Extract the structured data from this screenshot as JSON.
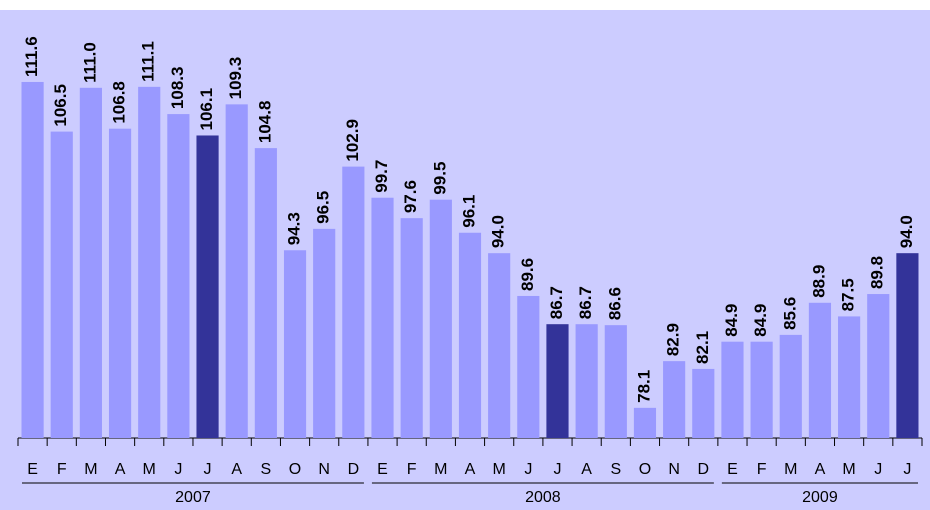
{
  "chart_data": {
    "type": "bar",
    "ylim": [
      75,
      119
    ],
    "color": "#9999ff",
    "groups": [
      {
        "label": "2007",
        "categories": [
          "E",
          "F",
          "M",
          "A",
          "M",
          "J",
          "J",
          "A",
          "S",
          "O",
          "N",
          "D"
        ],
        "values": [
          111.6,
          106.5,
          111.0,
          106.8,
          111.1,
          108.3,
          106.1,
          109.3,
          104.8,
          94.3,
          96.5,
          102.9
        ],
        "value_labels": [
          "111.6",
          "106.5",
          "111.0",
          "106.8",
          "111.1",
          "108.3",
          "106.1",
          "109.3",
          "104.8",
          "94.3",
          "96.5",
          "102.9"
        ],
        "colors": [
          "#9999ff",
          "#9999ff",
          "#9999ff",
          "#9999ff",
          "#9999ff",
          "#9999ff",
          "#333399",
          "#9999ff",
          "#9999ff",
          "#9999ff",
          "#9999ff",
          "#9999ff"
        ]
      },
      {
        "label": "2008",
        "categories": [
          "E",
          "F",
          "M",
          "A",
          "M",
          "J",
          "J",
          "A",
          "S",
          "O",
          "N",
          "D"
        ],
        "values": [
          99.7,
          97.6,
          99.5,
          96.1,
          94.0,
          89.6,
          86.7,
          86.7,
          86.6,
          78.1,
          82.9,
          82.1
        ],
        "value_labels": [
          "99.7",
          "97.6",
          "99.5",
          "96.1",
          "94.0",
          "89.6",
          "86.7",
          "86.7",
          "86.6",
          "78.1",
          "82.9",
          "82.1"
        ],
        "colors": [
          "#9999ff",
          "#9999ff",
          "#9999ff",
          "#9999ff",
          "#9999ff",
          "#9999ff",
          "#333399",
          "#9999ff",
          "#9999ff",
          "#9999ff",
          "#9999ff",
          "#9999ff"
        ]
      },
      {
        "label": "2009",
        "categories": [
          "E",
          "F",
          "M",
          "A",
          "M",
          "J",
          "J"
        ],
        "values": [
          84.9,
          84.9,
          85.6,
          88.9,
          87.5,
          89.8,
          94.0
        ],
        "value_labels": [
          "84.9",
          "84.9",
          "85.6",
          "88.9",
          "87.5",
          "89.8",
          "94.0"
        ],
        "colors": [
          "#9999ff",
          "#9999ff",
          "#9999ff",
          "#9999ff",
          "#9999ff",
          "#9999ff",
          "#333399"
        ]
      }
    ]
  }
}
